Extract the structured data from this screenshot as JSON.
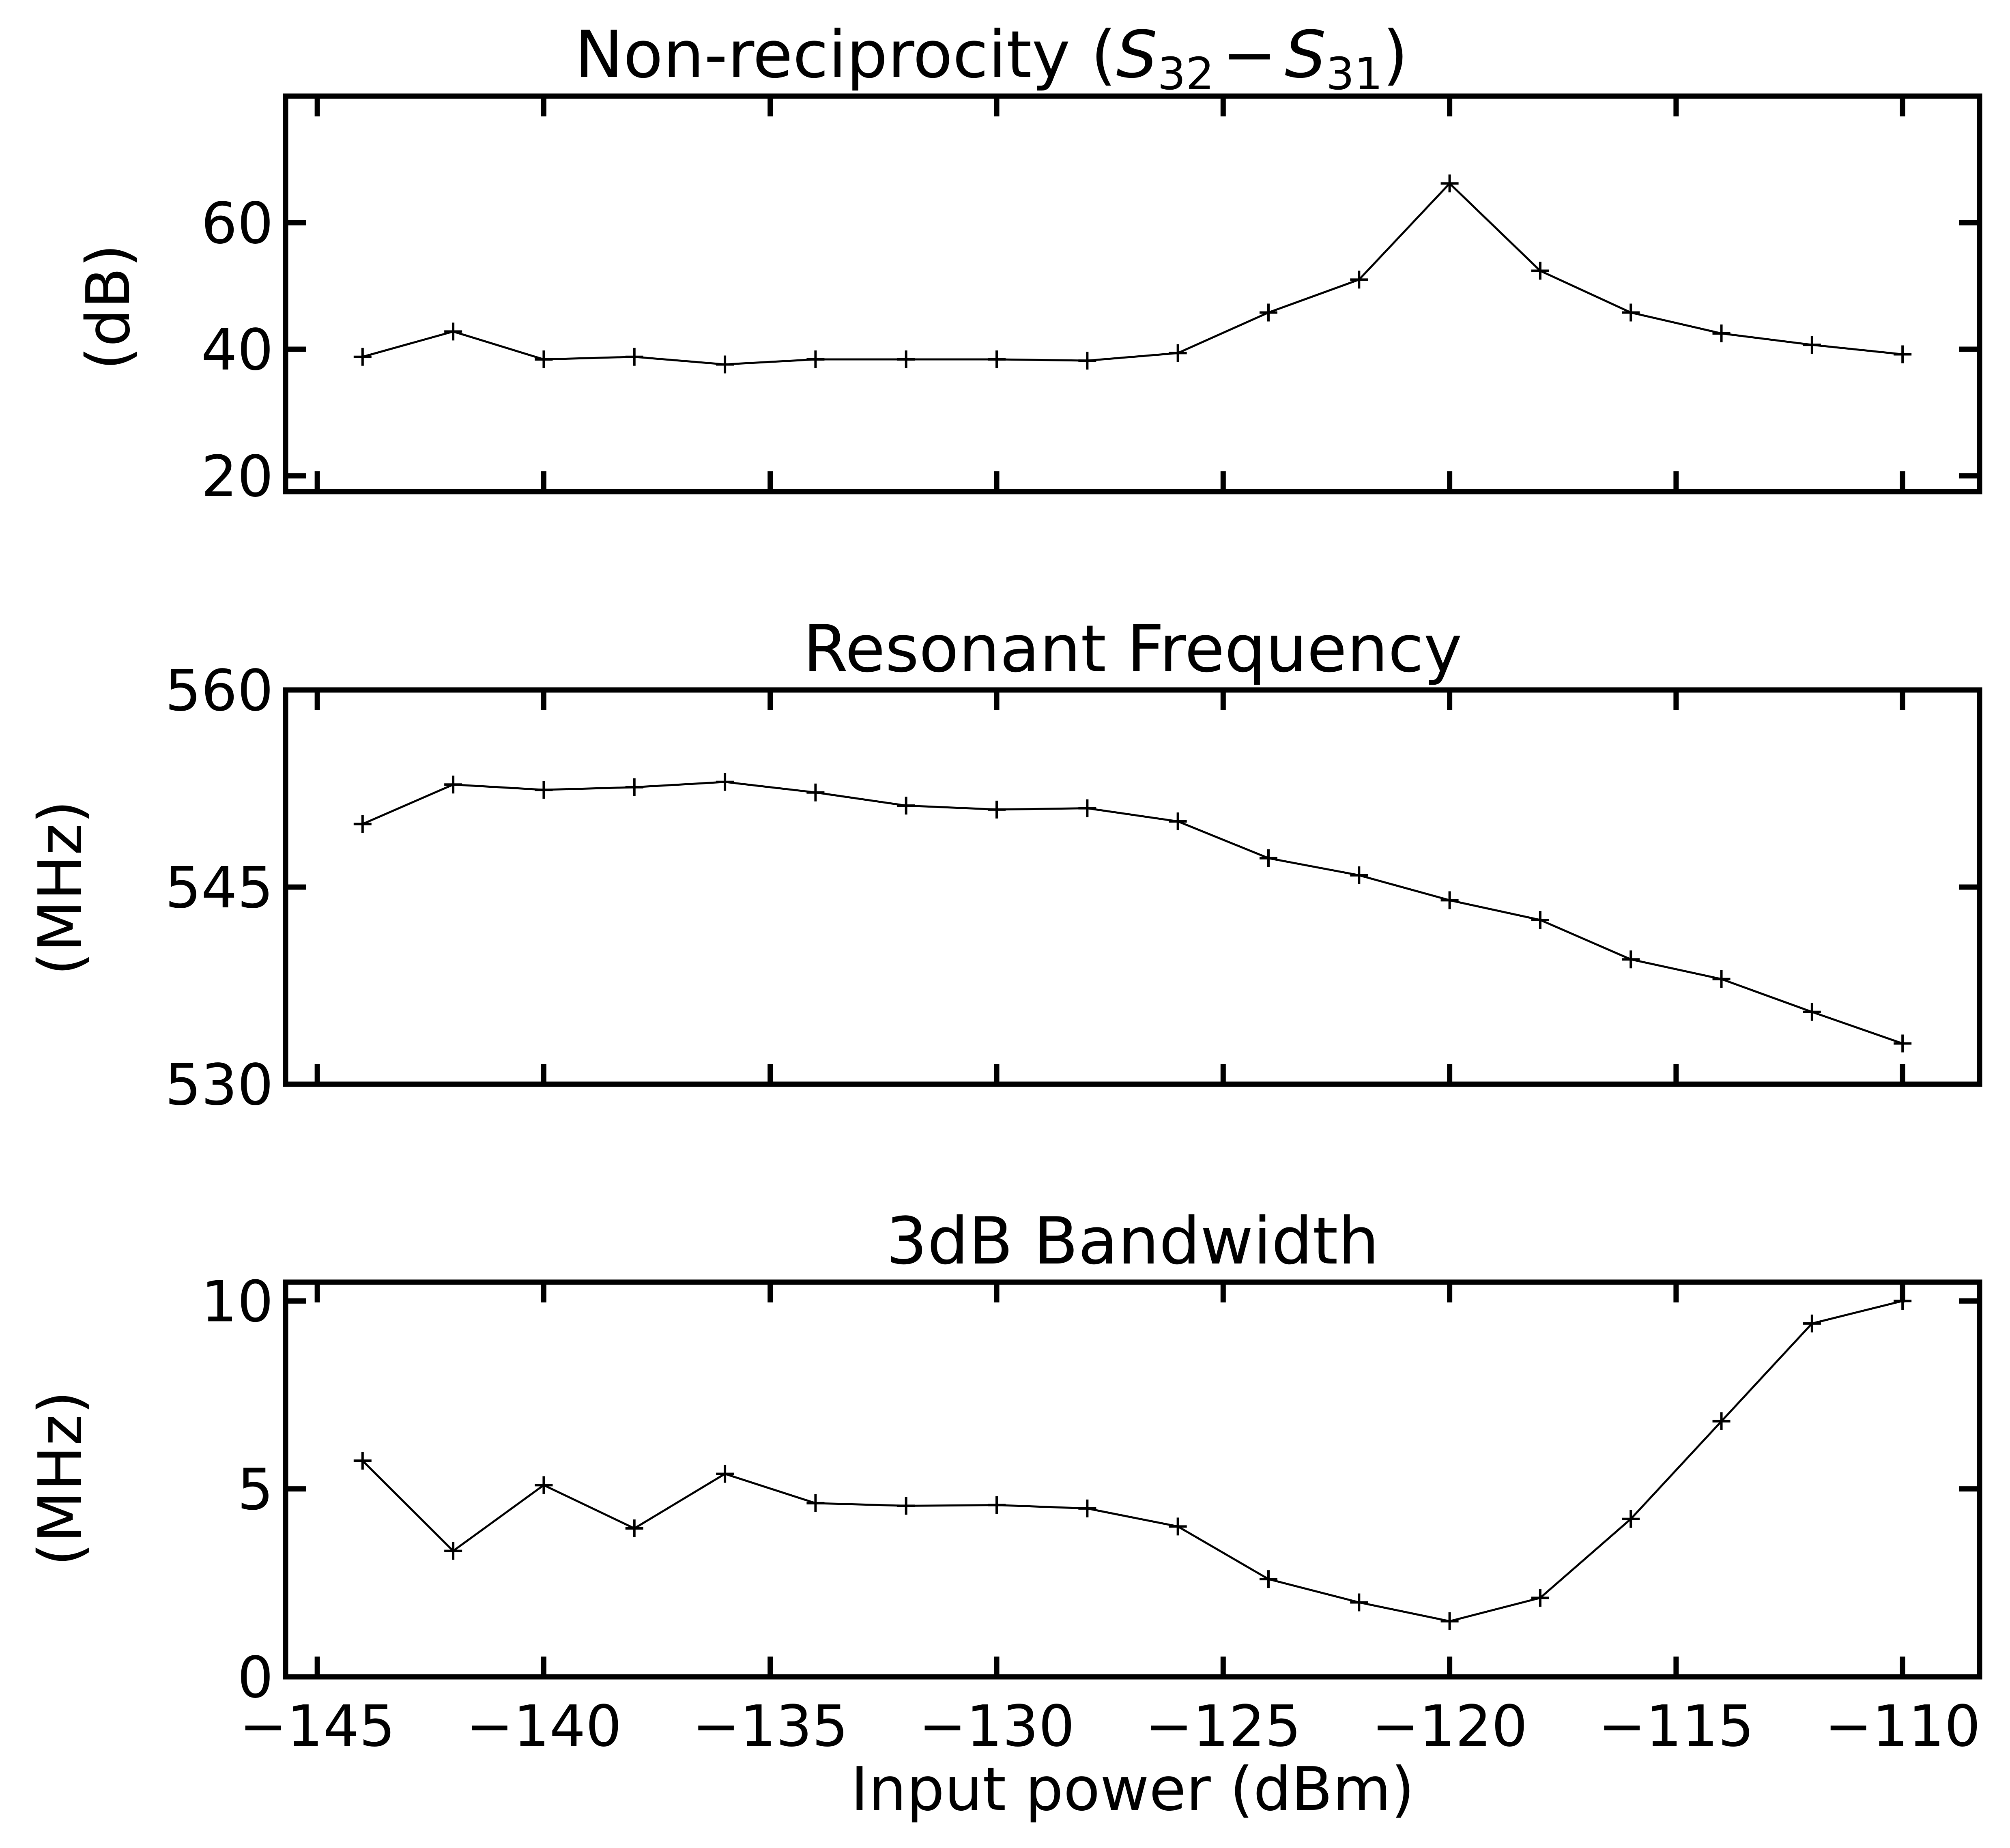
{
  "chart_data": [
    {
      "type": "line",
      "title_prefix": "Non-reciprocity (",
      "title_math": {
        "s1": "S",
        "sub1": "32",
        "minus": "−",
        "s2": "S",
        "sub2": "31"
      },
      "title_suffix": ")",
      "ylabel": "(dB)",
      "xlabel": "",
      "xlim": [
        -145.7,
        -108.3
      ],
      "ylim": [
        17.5,
        80
      ],
      "xticks": [
        -145,
        -140,
        -135,
        -130,
        -125,
        -120,
        -115,
        -110
      ],
      "yticks": [
        20,
        40,
        60
      ],
      "ytick_labels": [
        "20",
        "40",
        "60"
      ],
      "x": [
        -144,
        -142,
        -140,
        -138,
        -136,
        -134,
        -132,
        -130,
        -128,
        -126,
        -124,
        -122,
        -120,
        -118,
        -116,
        -114,
        -112,
        -110
      ],
      "y": [
        38.8,
        42.8,
        38.4,
        38.8,
        37.6,
        38.4,
        38.4,
        38.4,
        38.2,
        39.4,
        45.8,
        51.0,
        66.2,
        52.4,
        45.8,
        42.5,
        40.7,
        39.2
      ],
      "marker": "+",
      "grid": false
    },
    {
      "type": "line",
      "title": "Resonant Frequency",
      "ylabel": "(MHz)",
      "xlabel": "",
      "xlim": [
        -145.7,
        -108.3
      ],
      "ylim": [
        530,
        560
      ],
      "xticks": [
        -145,
        -140,
        -135,
        -130,
        -125,
        -120,
        -115,
        -110
      ],
      "yticks": [
        530,
        545,
        560
      ],
      "ytick_labels": [
        "530",
        "545",
        "560"
      ],
      "x": [
        -144,
        -142,
        -140,
        -138,
        -136,
        -134,
        -132,
        -130,
        -128,
        -126,
        -124,
        -122,
        -120,
        -118,
        -116,
        -114,
        -112,
        -110
      ],
      "y": [
        549.8,
        552.8,
        552.4,
        552.6,
        553.0,
        552.2,
        551.2,
        550.9,
        551.0,
        550.0,
        547.2,
        545.9,
        544.0,
        542.5,
        539.5,
        538.0,
        535.5,
        533.1
      ],
      "marker": "+",
      "grid": false
    },
    {
      "type": "line",
      "title": "3dB Bandwidth",
      "ylabel": "(MHz)",
      "xlabel": "Input power (dBm)",
      "xlim": [
        -145.7,
        -108.3
      ],
      "ylim": [
        0,
        10.5
      ],
      "xticks": [
        -145,
        -140,
        -135,
        -130,
        -125,
        -120,
        -115,
        -110
      ],
      "xtick_labels": [
        "−145",
        "−140",
        "−135",
        "−130",
        "−125",
        "−120",
        "−115",
        "−110"
      ],
      "yticks": [
        0,
        5,
        10
      ],
      "ytick_labels": [
        "0",
        "5",
        "10"
      ],
      "x": [
        -144,
        -142,
        -140,
        -138,
        -136,
        -134,
        -132,
        -130,
        -128,
        -126,
        -124,
        -122,
        -120,
        -118,
        -116,
        -114,
        -112,
        -110
      ],
      "y": [
        5.75,
        3.35,
        5.1,
        3.95,
        5.4,
        4.62,
        4.55,
        4.57,
        4.48,
        4.0,
        2.6,
        1.98,
        1.48,
        2.1,
        4.2,
        6.8,
        9.4,
        10.0
      ],
      "marker": "+",
      "grid": false
    }
  ]
}
